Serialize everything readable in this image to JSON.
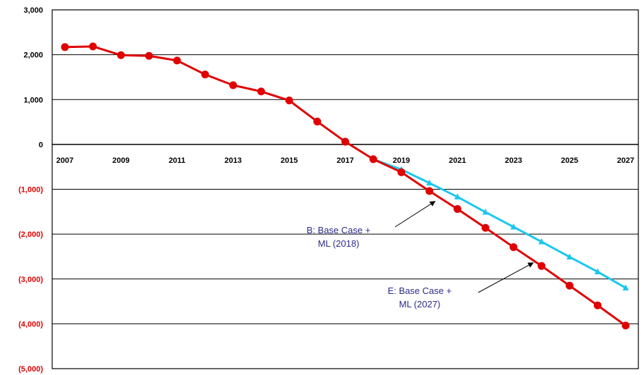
{
  "chart_data": {
    "type": "line",
    "x": [
      2007,
      2008,
      2009,
      2010,
      2011,
      2012,
      2013,
      2014,
      2015,
      2016,
      2017,
      2018,
      2019,
      2020,
      2021,
      2022,
      2023,
      2024,
      2025,
      2026,
      2027
    ],
    "x_tick_labels": [
      "2007",
      "2009",
      "2011",
      "2013",
      "2015",
      "2017",
      "2019",
      "2021",
      "2023",
      "2025",
      "2027"
    ],
    "y_tick_labels": [
      "3,000",
      "2,000",
      "1,000",
      "0",
      "(1,000)",
      "(2,000)",
      "(3,000)",
      "(4,000)",
      "(5,000)"
    ],
    "ylim": [
      -5000,
      3000
    ],
    "grid": "horizontal",
    "colors": {
      "negative_tick": "#e00000",
      "positive_tick": "#000000",
      "series_e": "#e00000",
      "series_b": "#19c8f0",
      "annotation_text": "#2b2b8a"
    },
    "series": [
      {
        "key": "e",
        "color": "#e00000",
        "marker": "circle",
        "x": [
          2007,
          2008,
          2009,
          2010,
          2011,
          2012,
          2013,
          2014,
          2015,
          2016,
          2017,
          2018,
          2019,
          2020,
          2021,
          2022,
          2023,
          2024,
          2025,
          2026,
          2027
        ],
        "values": [
          2170,
          2185,
          1990,
          1975,
          1870,
          1560,
          1320,
          1180,
          980,
          510,
          60,
          -330,
          -620,
          -1040,
          -1440,
          -1860,
          -2290,
          -2710,
          -3150,
          -3590,
          -4040
        ]
      },
      {
        "key": "b",
        "color": "#19c8f0",
        "marker": "triangle",
        "x": [
          2018,
          2019,
          2020,
          2021,
          2022,
          2023,
          2024,
          2025,
          2026,
          2027
        ],
        "values": [
          -330,
          -560,
          -860,
          -1170,
          -1510,
          -1840,
          -2170,
          -2510,
          -2840,
          -3200
        ]
      }
    ],
    "annotations": [
      {
        "line1": "B:  Base Case +",
        "line2": "ML (2018)",
        "arrow_to_x": 2020.2,
        "arrow_to_y": -1270
      },
      {
        "line1": "E:  Base Case +",
        "line2": "ML (2027)",
        "arrow_to_x": 2023.7,
        "arrow_to_y": -2640
      }
    ]
  }
}
